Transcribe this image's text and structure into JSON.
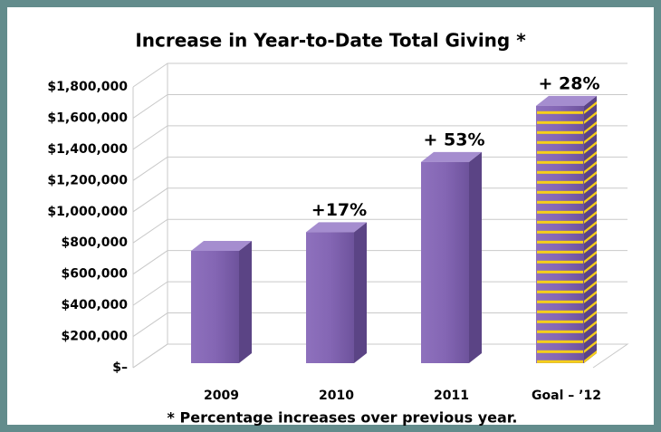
{
  "chart_data": {
    "type": "bar3d",
    "title": "Increase in Year-to-Date Total Giving *",
    "footnote": "* Percentage increases over previous year.",
    "categories": [
      "2009",
      "2010",
      "2011",
      "Goal – ’12"
    ],
    "values": [
      720000,
      840000,
      1290000,
      1650000
    ],
    "color": "#7f62ad",
    "stripe_color": "#f6cf1a",
    "striped": [
      false,
      false,
      false,
      true
    ],
    "annotations": [
      null,
      "+17%",
      "+ 53%",
      "+ 28%"
    ],
    "ylim": [
      0,
      1800000
    ],
    "yticks": [
      {
        "value": 0,
        "label": "$–"
      },
      {
        "value": 200000,
        "label": "$200,000"
      },
      {
        "value": 400000,
        "label": "$400,000"
      },
      {
        "value": 600000,
        "label": "$600,000"
      },
      {
        "value": 800000,
        "label": "$800,000"
      },
      {
        "value": 1000000,
        "label": "$1,000,000"
      },
      {
        "value": 1200000,
        "label": "$1,200,000"
      },
      {
        "value": 1400000,
        "label": "$1,400,000"
      },
      {
        "value": 1600000,
        "label": "$1,600,000"
      },
      {
        "value": 1800000,
        "label": "$1,800,000"
      }
    ],
    "grid": true
  }
}
